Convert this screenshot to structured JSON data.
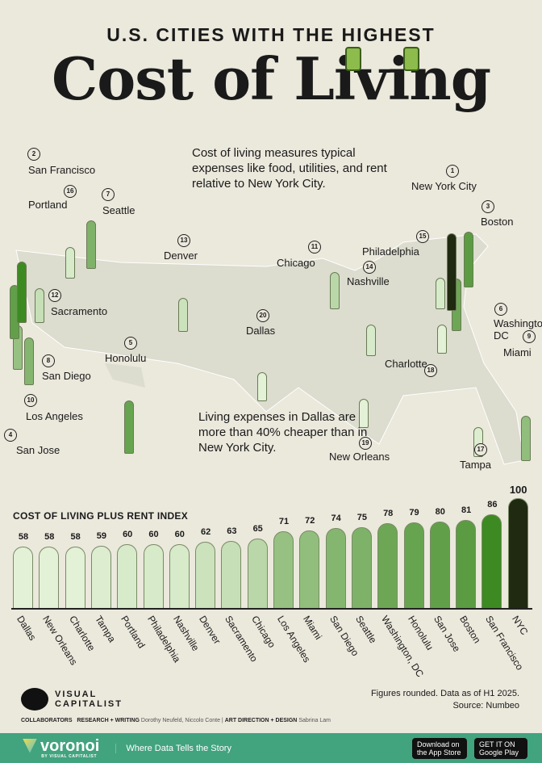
{
  "header": {
    "supertitle": "U.S. CITIES WITH THE HIGHEST",
    "title": "Cost of Living"
  },
  "intro": "Cost of living measures typical expenses like food, utilities, and rent relative to New York City.",
  "note": "Living expenses in Dallas are more than 40% cheaper than in New York City.",
  "chart_data": {
    "type": "bar",
    "title": "COST OF LIVING PLUS RENT INDEX",
    "categories": [
      "Dallas",
      "New Orleans",
      "Charlotte",
      "Tampa",
      "Portland",
      "Philadelphia",
      "Nashville",
      "Denver",
      "Sacramento",
      "Chicago",
      "Los Angeles",
      "Miami",
      "San Diego",
      "Seattle",
      "Washington, DC",
      "Honolulu",
      "San Jose",
      "Boston",
      "San Francisco",
      "NYC"
    ],
    "values": [
      58,
      58,
      58,
      59,
      60,
      60,
      60,
      62,
      63,
      65,
      71,
      72,
      74,
      75,
      78,
      79,
      80,
      81,
      86,
      100
    ],
    "ranks": [
      20,
      19,
      18,
      17,
      16,
      15,
      14,
      13,
      12,
      11,
      10,
      9,
      8,
      7,
      6,
      5,
      4,
      3,
      2,
      1
    ],
    "map_labels": [
      "Dallas",
      "New Orleans",
      "Charlotte",
      "Tampa",
      "Portland",
      "Philadelphia",
      "Nashville",
      "Denver",
      "Sacramento",
      "Chicago",
      "Los Angeles",
      "Miami",
      "San Diego",
      "Seattle",
      "Washington, DC",
      "Honolulu",
      "San Jose",
      "Boston",
      "San Francisco",
      "New York City"
    ],
    "colors": {
      "low": "#e3f1d6",
      "high": "#3e8a22",
      "top": "#1f2a10"
    }
  },
  "footer": {
    "sources": "Figures rounded. Data as of H1 2025.",
    "source": "Source: Numbeo",
    "logo": "VISUAL CAPITALIST",
    "collab_label": "COLLABORATORS",
    "research_label": "RESEARCH + WRITING",
    "research": "Dorothy Neufeld, Niccolo Conte",
    "design_label": "ART DIRECTION + DESIGN",
    "design": "Sabrina Lam",
    "brand": "voronoi",
    "brand_sub": "BY VISUAL CAPITALIST",
    "tagline": "Where Data Tells the Story",
    "app_store": "Download on the App Store",
    "google_play": "GET IT ON Google Play"
  }
}
